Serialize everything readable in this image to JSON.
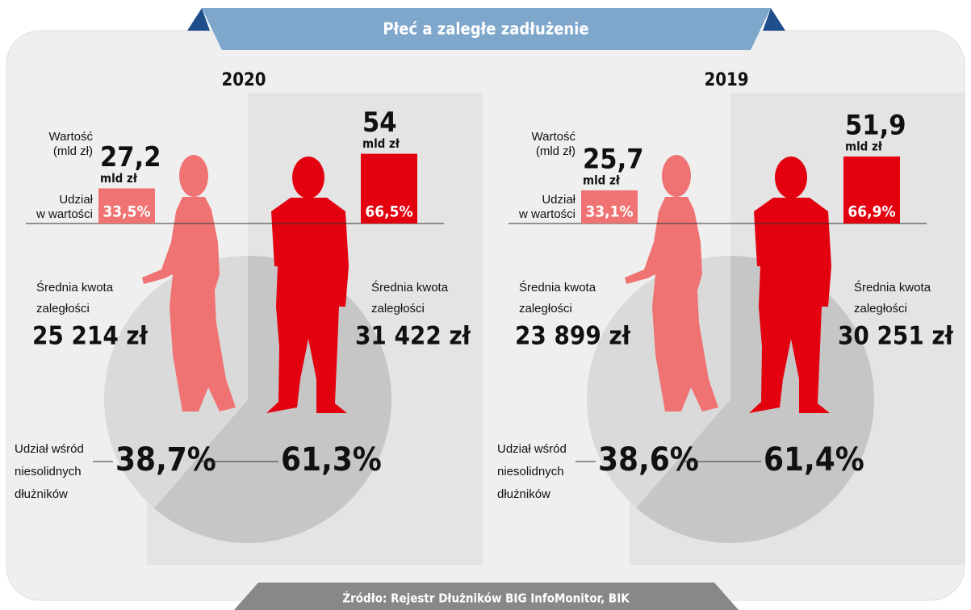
{
  "title": "Płeć a zaległe zadłużenie",
  "source": "Źródło: Rejestr Dłużników BIG InfoMonitor, BIK",
  "labels": {
    "value": [
      "Wartość",
      "(mld zł)"
    ],
    "share": [
      "Udział",
      "w wartości"
    ],
    "avg_debt": [
      "Średnia kwota",
      "zaległości"
    ],
    "debtor_share": [
      "Udział wśród",
      "niesolidnych",
      "dłużników"
    ]
  },
  "panels": [
    {
      "year": "2020",
      "women": {
        "value": 27.2,
        "value_label": "27,2",
        "unit": "mld zł",
        "share_label": "33,5%",
        "avg_debt": "25 214 zł",
        "debtor_share": 38.7,
        "debtor_share_label": "38,7%",
        "color": "#f07373"
      },
      "men": {
        "value": 54,
        "value_label": "54",
        "unit": "mld zł",
        "share_label": "66,5%",
        "avg_debt": "31 422 zł",
        "debtor_share": 61.3,
        "debtor_share_label": "61,3%",
        "color": "#e3000f"
      }
    },
    {
      "year": "2019",
      "women": {
        "value": 25.7,
        "value_label": "25,7",
        "unit": "mld zł",
        "share_label": "33,1%",
        "avg_debt": "23 899 zł",
        "debtor_share": 38.6,
        "debtor_share_label": "38,6%",
        "color": "#f07373"
      },
      "men": {
        "value": 51.9,
        "value_label": "51,9",
        "unit": "mld zł",
        "share_label": "66,9%",
        "avg_debt": "30 251 zł",
        "debtor_share": 61.4,
        "debtor_share_label": "61,4%",
        "color": "#e3000f"
      }
    }
  ]
}
